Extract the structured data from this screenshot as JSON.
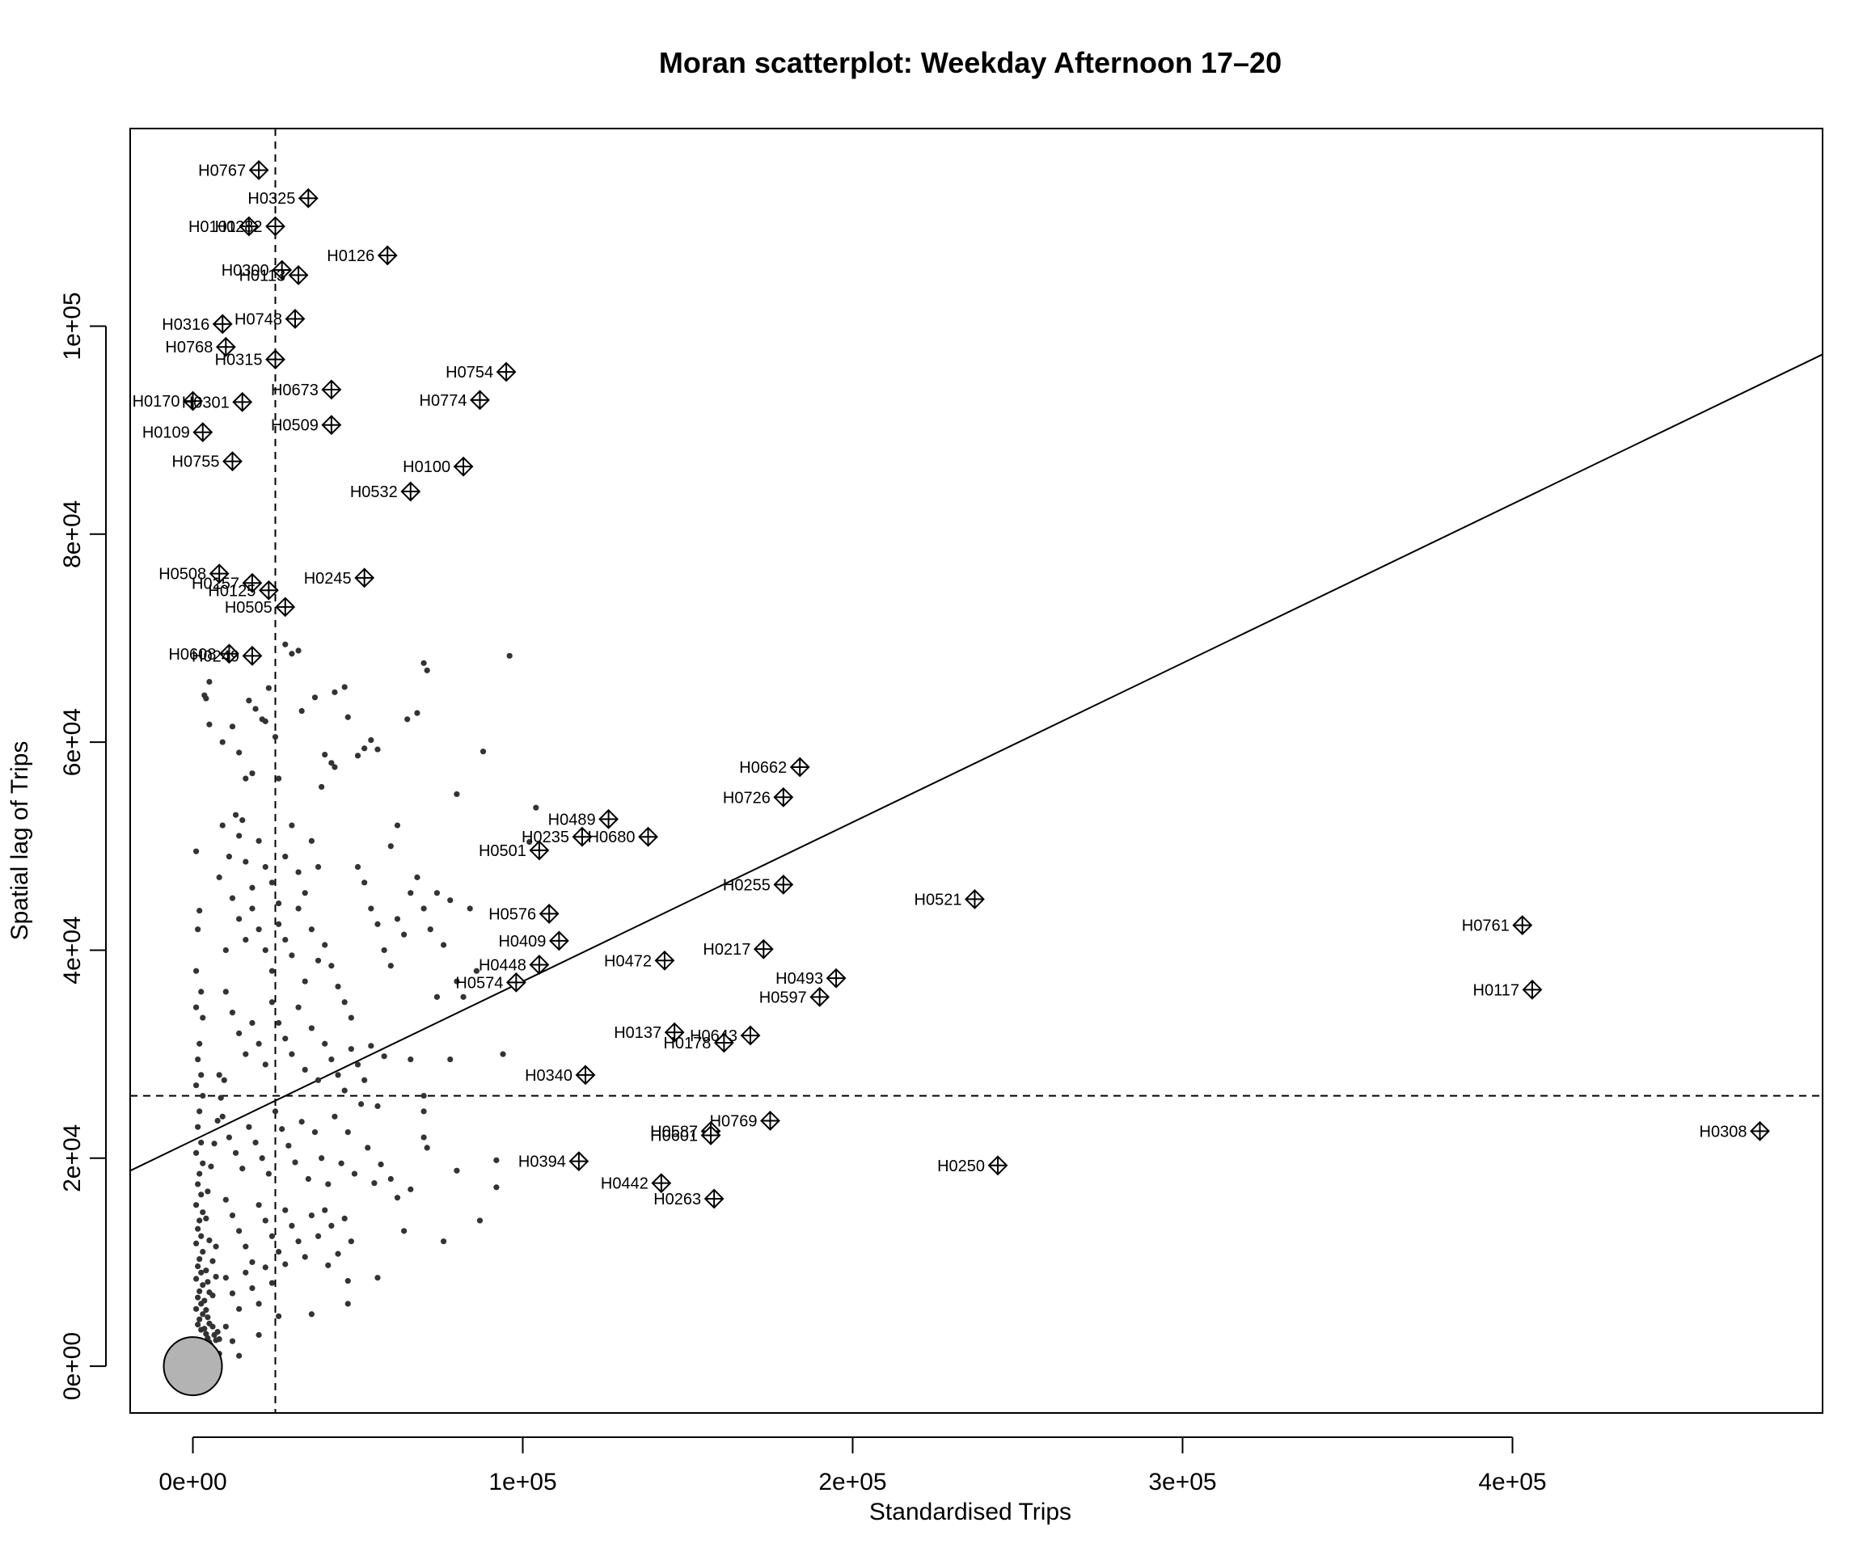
{
  "chart_data": {
    "type": "scatter",
    "title": "Moran scatterplot: Weekday Afternoon 17–20",
    "xlabel": "Standardised Trips",
    "ylabel": "Spatial lag of Trips",
    "xlim": [
      -19000,
      494000
    ],
    "ylim": [
      -4500,
      119000
    ],
    "x_ticks": [
      0,
      100000,
      200000,
      300000,
      400000
    ],
    "x_tick_labels": [
      "0e+00",
      "1e+05",
      "2e+05",
      "3e+05",
      "4e+05"
    ],
    "y_ticks": [
      0,
      20000,
      40000,
      60000,
      80000,
      100000
    ],
    "y_tick_labels": [
      "0e+00",
      "2e+04",
      "4e+04",
      "6e+04",
      "8e+04",
      "1e+05"
    ],
    "mean_x": 25000,
    "mean_y": 26000,
    "regression_line": {
      "intercept": 21700,
      "slope": 0.153
    },
    "influential_points": [
      {
        "label": "H0767",
        "x": 20000,
        "y": 115000
      },
      {
        "label": "H0325",
        "x": 35000,
        "y": 112300
      },
      {
        "label": "H0101",
        "x": 17000,
        "y": 109600
      },
      {
        "label": "H0282",
        "x": 25000,
        "y": 109600
      },
      {
        "label": "H0126",
        "x": 59000,
        "y": 106800
      },
      {
        "label": "H0300",
        "x": 27000,
        "y": 105400
      },
      {
        "label": "H0113",
        "x": 32000,
        "y": 104900
      },
      {
        "label": "H0748",
        "x": 31000,
        "y": 100700
      },
      {
        "label": "H0316",
        "x": 9000,
        "y": 100200
      },
      {
        "label": "H0768",
        "x": 10000,
        "y": 98000
      },
      {
        "label": "H0315",
        "x": 25000,
        "y": 96800
      },
      {
        "label": "H0754",
        "x": 95000,
        "y": 95600
      },
      {
        "label": "H0673",
        "x": 42000,
        "y": 93900
      },
      {
        "label": "H0774",
        "x": 87000,
        "y": 92900
      },
      {
        "label": "H0170",
        "x": 0,
        "y": 92800
      },
      {
        "label": "H0301",
        "x": 15000,
        "y": 92700
      },
      {
        "label": "H0509",
        "x": 42000,
        "y": 90500
      },
      {
        "label": "H0109",
        "x": 3000,
        "y": 89800
      },
      {
        "label": "H0755",
        "x": 12000,
        "y": 87000
      },
      {
        "label": "H0100",
        "x": 82000,
        "y": 86500
      },
      {
        "label": "H0532",
        "x": 66000,
        "y": 84100
      },
      {
        "label": "H0508",
        "x": 8000,
        "y": 76200
      },
      {
        "label": "H0245",
        "x": 52000,
        "y": 75800
      },
      {
        "label": "H0257",
        "x": 18000,
        "y": 75300
      },
      {
        "label": "H0125",
        "x": 23000,
        "y": 74600
      },
      {
        "label": "H0505",
        "x": 28000,
        "y": 73000
      },
      {
        "label": "H0608",
        "x": 11000,
        "y": 68500
      },
      {
        "label": "H0249",
        "x": 18000,
        "y": 68300
      },
      {
        "label": "H0662",
        "x": 184000,
        "y": 57600
      },
      {
        "label": "H0726",
        "x": 179000,
        "y": 54700
      },
      {
        "label": "H0489",
        "x": 126000,
        "y": 52600
      },
      {
        "label": "H0235",
        "x": 118000,
        "y": 50900
      },
      {
        "label": "H0680",
        "x": 138000,
        "y": 50900
      },
      {
        "label": "H0501",
        "x": 105000,
        "y": 49600
      },
      {
        "label": "H0255",
        "x": 179000,
        "y": 46300
      },
      {
        "label": "H0521",
        "x": 237000,
        "y": 44900
      },
      {
        "label": "H0761",
        "x": 403000,
        "y": 42400
      },
      {
        "label": "H0576",
        "x": 108000,
        "y": 43500
      },
      {
        "label": "H0409",
        "x": 111000,
        "y": 40900
      },
      {
        "label": "H0217",
        "x": 173000,
        "y": 40100
      },
      {
        "label": "H0472",
        "x": 143000,
        "y": 39000
      },
      {
        "label": "H0448",
        "x": 105000,
        "y": 38600
      },
      {
        "label": "H0493",
        "x": 195000,
        "y": 37300
      },
      {
        "label": "H0574",
        "x": 98000,
        "y": 36900
      },
      {
        "label": "H0117",
        "x": 406000,
        "y": 36200
      },
      {
        "label": "H0597",
        "x": 190000,
        "y": 35500
      },
      {
        "label": "H0137",
        "x": 146000,
        "y": 32100
      },
      {
        "label": "H0643",
        "x": 169000,
        "y": 31800
      },
      {
        "label": "H0178",
        "x": 161000,
        "y": 31100
      },
      {
        "label": "H0340",
        "x": 119000,
        "y": 28000
      },
      {
        "label": "H0769",
        "x": 175000,
        "y": 23600
      },
      {
        "label": "H0587",
        "x": 157000,
        "y": 22600
      },
      {
        "label": "H0601",
        "x": 157000,
        "y": 22200
      },
      {
        "label": "H0308",
        "x": 475000,
        "y": 22600
      },
      {
        "label": "H0394",
        "x": 117000,
        "y": 19700
      },
      {
        "label": "H0250",
        "x": 244000,
        "y": 19300
      },
      {
        "label": "H0442",
        "x": 142000,
        "y": 17600
      },
      {
        "label": "H0263",
        "x": 158000,
        "y": 16100
      }
    ],
    "origin_marker": {
      "x": 0,
      "y": 0
    },
    "other_points": [
      [
        1000,
        49500
      ],
      [
        2000,
        43800
      ],
      [
        1500,
        42000
      ],
      [
        1000,
        38000
      ],
      [
        2500,
        36000
      ],
      [
        1000,
        34500
      ],
      [
        3000,
        33500
      ],
      [
        2000,
        31000
      ],
      [
        1500,
        29500
      ],
      [
        2500,
        28000
      ],
      [
        1000,
        27000
      ],
      [
        3000,
        26000
      ],
      [
        2000,
        24500
      ],
      [
        1500,
        23000
      ],
      [
        2500,
        21500
      ],
      [
        1000,
        20500
      ],
      [
        3000,
        19500
      ],
      [
        2000,
        18500
      ],
      [
        1500,
        17500
      ],
      [
        2500,
        16500
      ],
      [
        1000,
        15500
      ],
      [
        3000,
        14800
      ],
      [
        2000,
        14000
      ],
      [
        1500,
        13200
      ],
      [
        2500,
        12500
      ],
      [
        1000,
        11800
      ],
      [
        3000,
        11000
      ],
      [
        2000,
        10300
      ],
      [
        1500,
        9600
      ],
      [
        2500,
        9000
      ],
      [
        1000,
        8400
      ],
      [
        3000,
        7800
      ],
      [
        2000,
        7200
      ],
      [
        1500,
        6600
      ],
      [
        2500,
        6000
      ],
      [
        1000,
        5500
      ],
      [
        3000,
        5000
      ],
      [
        2000,
        4500
      ],
      [
        1500,
        4000
      ],
      [
        2500,
        3500
      ],
      [
        4000,
        9200
      ],
      [
        4500,
        8100
      ],
      [
        5000,
        7100
      ],
      [
        3500,
        6300
      ],
      [
        4000,
        5400
      ],
      [
        4500,
        4700
      ],
      [
        5000,
        4100
      ],
      [
        3500,
        3600
      ],
      [
        4000,
        3100
      ],
      [
        4500,
        2700
      ],
      [
        5000,
        2300
      ],
      [
        3500,
        1900
      ],
      [
        4000,
        1600
      ],
      [
        6000,
        3800
      ],
      [
        6500,
        3000
      ],
      [
        7000,
        2500
      ],
      [
        5500,
        2000
      ],
      [
        6000,
        1700
      ],
      [
        7500,
        3300
      ],
      [
        8000,
        2600
      ],
      [
        4000,
        14200
      ],
      [
        5000,
        12100
      ],
      [
        6000,
        10100
      ],
      [
        7000,
        8600
      ],
      [
        4500,
        16800
      ],
      [
        5500,
        19200
      ],
      [
        6500,
        21400
      ],
      [
        7500,
        23600
      ],
      [
        8500,
        25800
      ],
      [
        9500,
        27500
      ],
      [
        3500,
        64500
      ],
      [
        4000,
        64200
      ],
      [
        5000,
        61700
      ],
      [
        5000,
        65800
      ],
      [
        9000,
        60000
      ],
      [
        12000,
        61500
      ],
      [
        14000,
        59000
      ],
      [
        16000,
        56500
      ],
      [
        17000,
        64000
      ],
      [
        19000,
        63200
      ],
      [
        21000,
        62200
      ],
      [
        23000,
        65200
      ],
      [
        25000,
        60500
      ],
      [
        30000,
        68500
      ],
      [
        32000,
        68800
      ],
      [
        28000,
        69400
      ],
      [
        33000,
        63000
      ],
      [
        37000,
        64300
      ],
      [
        40000,
        58800
      ],
      [
        39000,
        55700
      ],
      [
        43000,
        64800
      ],
      [
        46000,
        65300
      ],
      [
        47000,
        62400
      ],
      [
        50000,
        58700
      ],
      [
        52000,
        59400
      ],
      [
        54000,
        60200
      ],
      [
        56000,
        59300
      ],
      [
        65000,
        62200
      ],
      [
        68000,
        62800
      ],
      [
        70000,
        67600
      ],
      [
        71000,
        66900
      ],
      [
        96000,
        68300
      ],
      [
        104000,
        53700
      ],
      [
        102000,
        50400
      ],
      [
        80000,
        55000
      ],
      [
        60000,
        50000
      ],
      [
        62000,
        52000
      ],
      [
        88000,
        59100
      ],
      [
        43000,
        57600
      ],
      [
        42000,
        58000
      ],
      [
        22000,
        62000
      ],
      [
        18000,
        57000
      ],
      [
        26000,
        56500
      ],
      [
        13000,
        53000
      ],
      [
        15000,
        52500
      ],
      [
        9000,
        52000
      ],
      [
        8000,
        47000
      ],
      [
        11000,
        49000
      ],
      [
        14000,
        51000
      ],
      [
        16000,
        48500
      ],
      [
        18000,
        46000
      ],
      [
        20000,
        50500
      ],
      [
        22000,
        48000
      ],
      [
        24000,
        46500
      ],
      [
        26000,
        44500
      ],
      [
        28000,
        49000
      ],
      [
        30000,
        52000
      ],
      [
        32000,
        47500
      ],
      [
        34000,
        45500
      ],
      [
        36000,
        50500
      ],
      [
        38000,
        48000
      ],
      [
        12000,
        45000
      ],
      [
        14000,
        43000
      ],
      [
        16000,
        41000
      ],
      [
        18000,
        44000
      ],
      [
        20000,
        42000
      ],
      [
        22000,
        40000
      ],
      [
        24000,
        38000
      ],
      [
        26000,
        42500
      ],
      [
        28000,
        41000
      ],
      [
        30000,
        39500
      ],
      [
        32000,
        44000
      ],
      [
        34000,
        37000
      ],
      [
        36000,
        42000
      ],
      [
        38000,
        39000
      ],
      [
        40000,
        40500
      ],
      [
        42000,
        38500
      ],
      [
        44000,
        36500
      ],
      [
        46000,
        35000
      ],
      [
        48000,
        33500
      ],
      [
        50000,
        48000
      ],
      [
        52000,
        46500
      ],
      [
        54000,
        44000
      ],
      [
        56000,
        42500
      ],
      [
        58000,
        40000
      ],
      [
        60000,
        38500
      ],
      [
        62000,
        43000
      ],
      [
        64000,
        41500
      ],
      [
        66000,
        45500
      ],
      [
        68000,
        47000
      ],
      [
        70000,
        44000
      ],
      [
        72000,
        42000
      ],
      [
        74000,
        45500
      ],
      [
        76000,
        40500
      ],
      [
        78000,
        44800
      ],
      [
        80000,
        37000
      ],
      [
        82000,
        35500
      ],
      [
        84000,
        44000
      ],
      [
        86000,
        38000
      ],
      [
        74000,
        35500
      ],
      [
        10000,
        40000
      ],
      [
        10000,
        36000
      ],
      [
        12000,
        34000
      ],
      [
        14000,
        32000
      ],
      [
        16000,
        30000
      ],
      [
        18000,
        33000
      ],
      [
        20000,
        31000
      ],
      [
        22000,
        29000
      ],
      [
        24000,
        35000
      ],
      [
        26000,
        33000
      ],
      [
        28000,
        31500
      ],
      [
        30000,
        30000
      ],
      [
        32000,
        34500
      ],
      [
        34000,
        28500
      ],
      [
        36000,
        32500
      ],
      [
        38000,
        27500
      ],
      [
        40000,
        31000
      ],
      [
        42000,
        29500
      ],
      [
        44000,
        28000
      ],
      [
        46000,
        26500
      ],
      [
        48000,
        30500
      ],
      [
        50000,
        29000
      ],
      [
        52000,
        27500
      ],
      [
        54000,
        30800
      ],
      [
        56000,
        25000
      ],
      [
        58000,
        29800
      ],
      [
        66000,
        29500
      ],
      [
        70000,
        26000
      ],
      [
        70000,
        24500
      ],
      [
        70000,
        22000
      ],
      [
        71000,
        21000
      ],
      [
        78000,
        29500
      ],
      [
        94000,
        30000
      ],
      [
        8000,
        28000
      ],
      [
        9000,
        24000
      ],
      [
        11000,
        22000
      ],
      [
        13000,
        20500
      ],
      [
        15000,
        19000
      ],
      [
        17000,
        23000
      ],
      [
        19000,
        21500
      ],
      [
        21000,
        20000
      ],
      [
        23000,
        18500
      ],
      [
        25000,
        24500
      ],
      [
        27000,
        22800
      ],
      [
        29000,
        21200
      ],
      [
        31000,
        19600
      ],
      [
        33000,
        23500
      ],
      [
        35000,
        18000
      ],
      [
        37000,
        22500
      ],
      [
        39000,
        20000
      ],
      [
        41000,
        17500
      ],
      [
        43000,
        24000
      ],
      [
        45000,
        19500
      ],
      [
        47000,
        22500
      ],
      [
        49000,
        18500
      ],
      [
        51000,
        25200
      ],
      [
        53000,
        21000
      ],
      [
        55000,
        17600
      ],
      [
        57000,
        19400
      ],
      [
        60000,
        18000
      ],
      [
        62000,
        16200
      ],
      [
        66000,
        17000
      ],
      [
        80000,
        18800
      ],
      [
        92000,
        19800
      ],
      [
        92000,
        17200
      ],
      [
        64000,
        13000
      ],
      [
        56000,
        8500
      ],
      [
        76000,
        12000
      ],
      [
        87000,
        14000
      ],
      [
        10000,
        16000
      ],
      [
        12000,
        14500
      ],
      [
        14000,
        13000
      ],
      [
        16000,
        11500
      ],
      [
        18000,
        10000
      ],
      [
        20000,
        15500
      ],
      [
        22000,
        14000
      ],
      [
        24000,
        12500
      ],
      [
        26000,
        11000
      ],
      [
        28000,
        15000
      ],
      [
        30000,
        13500
      ],
      [
        32000,
        12000
      ],
      [
        34000,
        10500
      ],
      [
        36000,
        14500
      ],
      [
        38000,
        12500
      ],
      [
        40000,
        15000
      ],
      [
        42000,
        13500
      ],
      [
        44000,
        10800
      ],
      [
        46000,
        14200
      ],
      [
        48000,
        12000
      ],
      [
        10000,
        8500
      ],
      [
        12000,
        7000
      ],
      [
        14000,
        5500
      ],
      [
        16000,
        9000
      ],
      [
        18000,
        7500
      ],
      [
        20000,
        6000
      ],
      [
        22000,
        9500
      ],
      [
        24000,
        8000
      ],
      [
        26000,
        4800
      ],
      [
        28000,
        9800
      ],
      [
        36000,
        5000
      ],
      [
        41000,
        9700
      ],
      [
        47000,
        8200
      ],
      [
        47000,
        6000
      ],
      [
        20000,
        3000
      ],
      [
        14000,
        1000
      ],
      [
        10000,
        3800
      ],
      [
        12000,
        2400
      ],
      [
        8000,
        1200
      ],
      [
        6000,
        6800
      ],
      [
        7000,
        11500
      ]
    ]
  }
}
